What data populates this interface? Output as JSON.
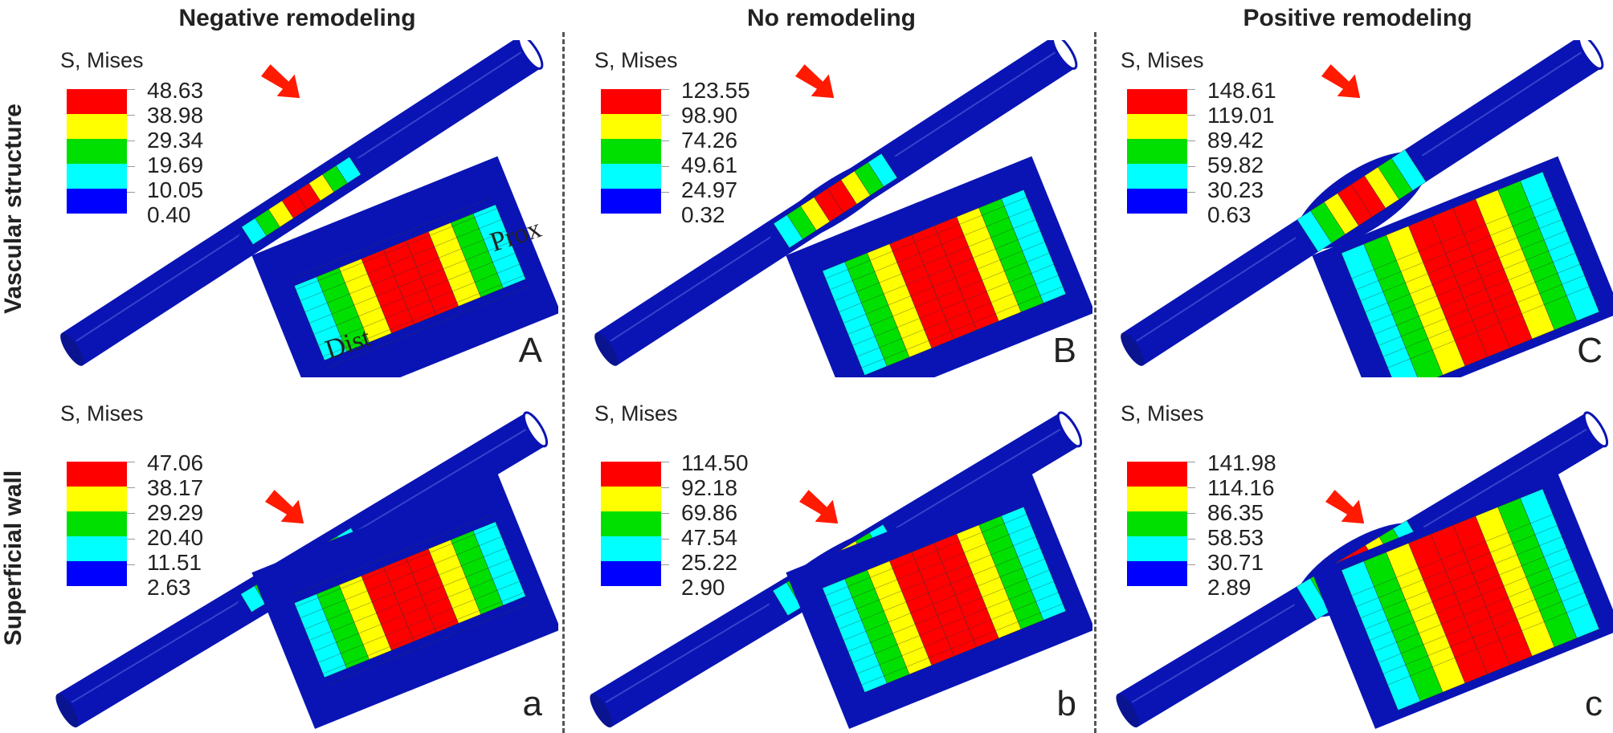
{
  "columns": [
    "Negative remodeling",
    "No remodeling",
    "Positive remodeling"
  ],
  "rows": [
    "Vascular structure",
    "Superficial wall"
  ],
  "legend_colors": [
    "#ff0000",
    "#ffff00",
    "#00e000",
    "#00ffff",
    "#0000ff"
  ],
  "tube_color": "#0a14b4",
  "arrow_color": "#ff1a00",
  "panels": [
    {
      "letter": "A",
      "legend_title": "S, Mises",
      "values": [
        "48.63",
        "38.98",
        "29.34",
        "19.69",
        "10.05",
        "0.40"
      ],
      "shape": "narrow",
      "annotations": {
        "dist": "Dist",
        "prox": "Prox"
      }
    },
    {
      "letter": "B",
      "legend_title": "S, Mises",
      "values": [
        "123.55",
        "98.90",
        "74.26",
        "49.61",
        "24.97",
        "0.32"
      ],
      "shape": "straight"
    },
    {
      "letter": "C",
      "legend_title": "S, Mises",
      "values": [
        "148.61",
        "119.01",
        "89.42",
        "59.82",
        "30.23",
        "0.63"
      ],
      "shape": "wide"
    },
    {
      "letter": "a",
      "legend_title": "S, Mises",
      "values": [
        "47.06",
        "38.17",
        "29.29",
        "20.40",
        "11.51",
        "2.63"
      ],
      "shape": "narrow"
    },
    {
      "letter": "b",
      "legend_title": "S, Mises",
      "values": [
        "114.50",
        "92.18",
        "69.86",
        "47.54",
        "25.22",
        "2.90"
      ],
      "shape": "straight"
    },
    {
      "letter": "c",
      "legend_title": "S, Mises",
      "values": [
        "141.98",
        "114.16",
        "86.35",
        "58.53",
        "30.71",
        "2.89"
      ],
      "shape": "wide"
    }
  ]
}
